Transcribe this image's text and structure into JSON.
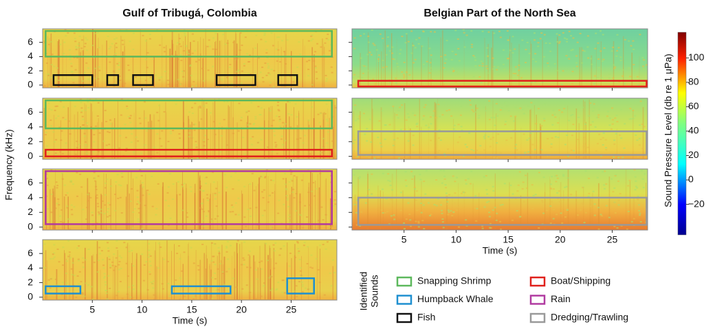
{
  "y_label": "Frequency (kHz)",
  "chart_data": [
    {
      "title": "Gulf of Tribugá, Colombia",
      "panels": [
        {
          "type": "spectrogram",
          "xlim": [
            0,
            29.6
          ],
          "ylim": [
            -0.4,
            7.9
          ],
          "xticks": [
            5,
            10,
            15,
            20,
            25
          ],
          "yticks": [
            0,
            2,
            4,
            6
          ],
          "xtick_labels": false,
          "ytick_labels": true,
          "boxes": [
            {
              "sound": 0,
              "x": [
                0.3,
                29.1
              ],
              "y": [
                4,
                7.6
              ]
            },
            {
              "sound": 4,
              "x": [
                1.1,
                5.0
              ],
              "y": [
                0,
                1.4
              ]
            },
            {
              "sound": 4,
              "x": [
                6.5,
                7.6
              ],
              "y": [
                0,
                1.4
              ]
            },
            {
              "sound": 4,
              "x": [
                9.1,
                11.1
              ],
              "y": [
                0,
                1.4
              ]
            },
            {
              "sound": 4,
              "x": [
                17.5,
                21.4
              ],
              "y": [
                0,
                1.4
              ]
            },
            {
              "sound": 4,
              "x": [
                23.7,
                25.6
              ],
              "y": [
                0,
                1.4
              ]
            }
          ]
        },
        {
          "type": "spectrogram",
          "xlim": [
            0,
            29.6
          ],
          "ylim": [
            -0.4,
            7.9
          ],
          "xticks": [
            5,
            10,
            15,
            20,
            25
          ],
          "yticks": [
            0,
            2,
            4,
            6
          ],
          "xtick_labels": false,
          "ytick_labels": true,
          "boxes": [
            {
              "sound": 0,
              "x": [
                0.3,
                29.1
              ],
              "y": [
                3.8,
                7.6
              ]
            },
            {
              "sound": 1,
              "x": [
                0.3,
                29.1
              ],
              "y": [
                0,
                0.9
              ]
            }
          ]
        },
        {
          "type": "spectrogram",
          "xlim": [
            0,
            29.6
          ],
          "ylim": [
            -0.4,
            7.9
          ],
          "xticks": [
            5,
            10,
            15,
            20,
            25
          ],
          "yticks": [
            0,
            2,
            4,
            6
          ],
          "xtick_labels": false,
          "ytick_labels": true,
          "boxes": [
            {
              "sound": 3,
              "x": [
                0.3,
                29.1
              ],
              "y": [
                0.4,
                7.6
              ]
            }
          ]
        },
        {
          "type": "spectrogram",
          "xlim": [
            0,
            29.6
          ],
          "ylim": [
            -0.4,
            7.9
          ],
          "xticks": [
            5,
            10,
            15,
            20,
            25
          ],
          "yticks": [
            0,
            2,
            4,
            6
          ],
          "xtick_labels": true,
          "ytick_labels": true,
          "x_label": "Time (s)",
          "boxes": [
            {
              "sound": 2,
              "x": [
                0.3,
                3.8
              ],
              "y": [
                0.5,
                1.5
              ]
            },
            {
              "sound": 2,
              "x": [
                13.0,
                18.9
              ],
              "y": [
                0.5,
                1.5
              ]
            },
            {
              "sound": 2,
              "x": [
                24.6,
                27.3
              ],
              "y": [
                0.5,
                2.6
              ]
            }
          ]
        }
      ]
    },
    {
      "title": "Belgian Part of the North Sea",
      "panels": [
        {
          "type": "spectrogram",
          "xlim": [
            0,
            28.4
          ],
          "ylim": [
            -0.4,
            7.9
          ],
          "xticks": [
            5,
            10,
            15,
            20,
            25
          ],
          "yticks": [
            0,
            2,
            4,
            6
          ],
          "xtick_labels": false,
          "ytick_labels": false,
          "boxes": [
            {
              "sound": 1,
              "x": [
                0.6,
                28.3
              ],
              "y": [
                -0.2,
                0.6
              ]
            }
          ]
        },
        {
          "type": "spectrogram",
          "xlim": [
            0,
            28.4
          ],
          "ylim": [
            -0.4,
            7.9
          ],
          "xticks": [
            5,
            10,
            15,
            20,
            25
          ],
          "yticks": [
            0,
            2,
            4,
            6
          ],
          "xtick_labels": false,
          "ytick_labels": false,
          "boxes": [
            {
              "sound": 5,
              "x": [
                0.6,
                28.3
              ],
              "y": [
                0.2,
                3.4
              ]
            }
          ]
        },
        {
          "type": "spectrogram",
          "xlim": [
            0,
            28.4
          ],
          "ylim": [
            -0.4,
            7.9
          ],
          "xticks": [
            5,
            10,
            15,
            20,
            25
          ],
          "yticks": [
            0,
            2,
            4,
            6
          ],
          "xtick_labels": true,
          "ytick_labels": false,
          "x_label": "Time (s)",
          "boxes": [
            {
              "sound": 5,
              "x": [
                0.6,
                28.3
              ],
              "y": [
                0.3,
                4.0
              ]
            }
          ]
        }
      ]
    }
  ],
  "colorbar": {
    "label": "Sound Pressure Level (db re 1 μPa)",
    "lim": [
      -45,
      121
    ],
    "ticks": [
      {
        "value": -20,
        "label": "−20"
      },
      0,
      20,
      40,
      60,
      80,
      100
    ]
  },
  "legend": {
    "title": [
      "Identified",
      "Sounds"
    ],
    "entries": [
      {
        "name": "Snapping Shrimp",
        "color": "#5cb85c"
      },
      {
        "name": "Boat/Shipping",
        "color": "#e0201b"
      },
      {
        "name": "Humpback Whale",
        "color": "#1e8fd0"
      },
      {
        "name": "Rain",
        "color": "#b03aa0"
      },
      {
        "name": "Fish",
        "color": "#111111"
      },
      {
        "name": "Dredging/Trawling",
        "color": "#999999"
      }
    ]
  }
}
